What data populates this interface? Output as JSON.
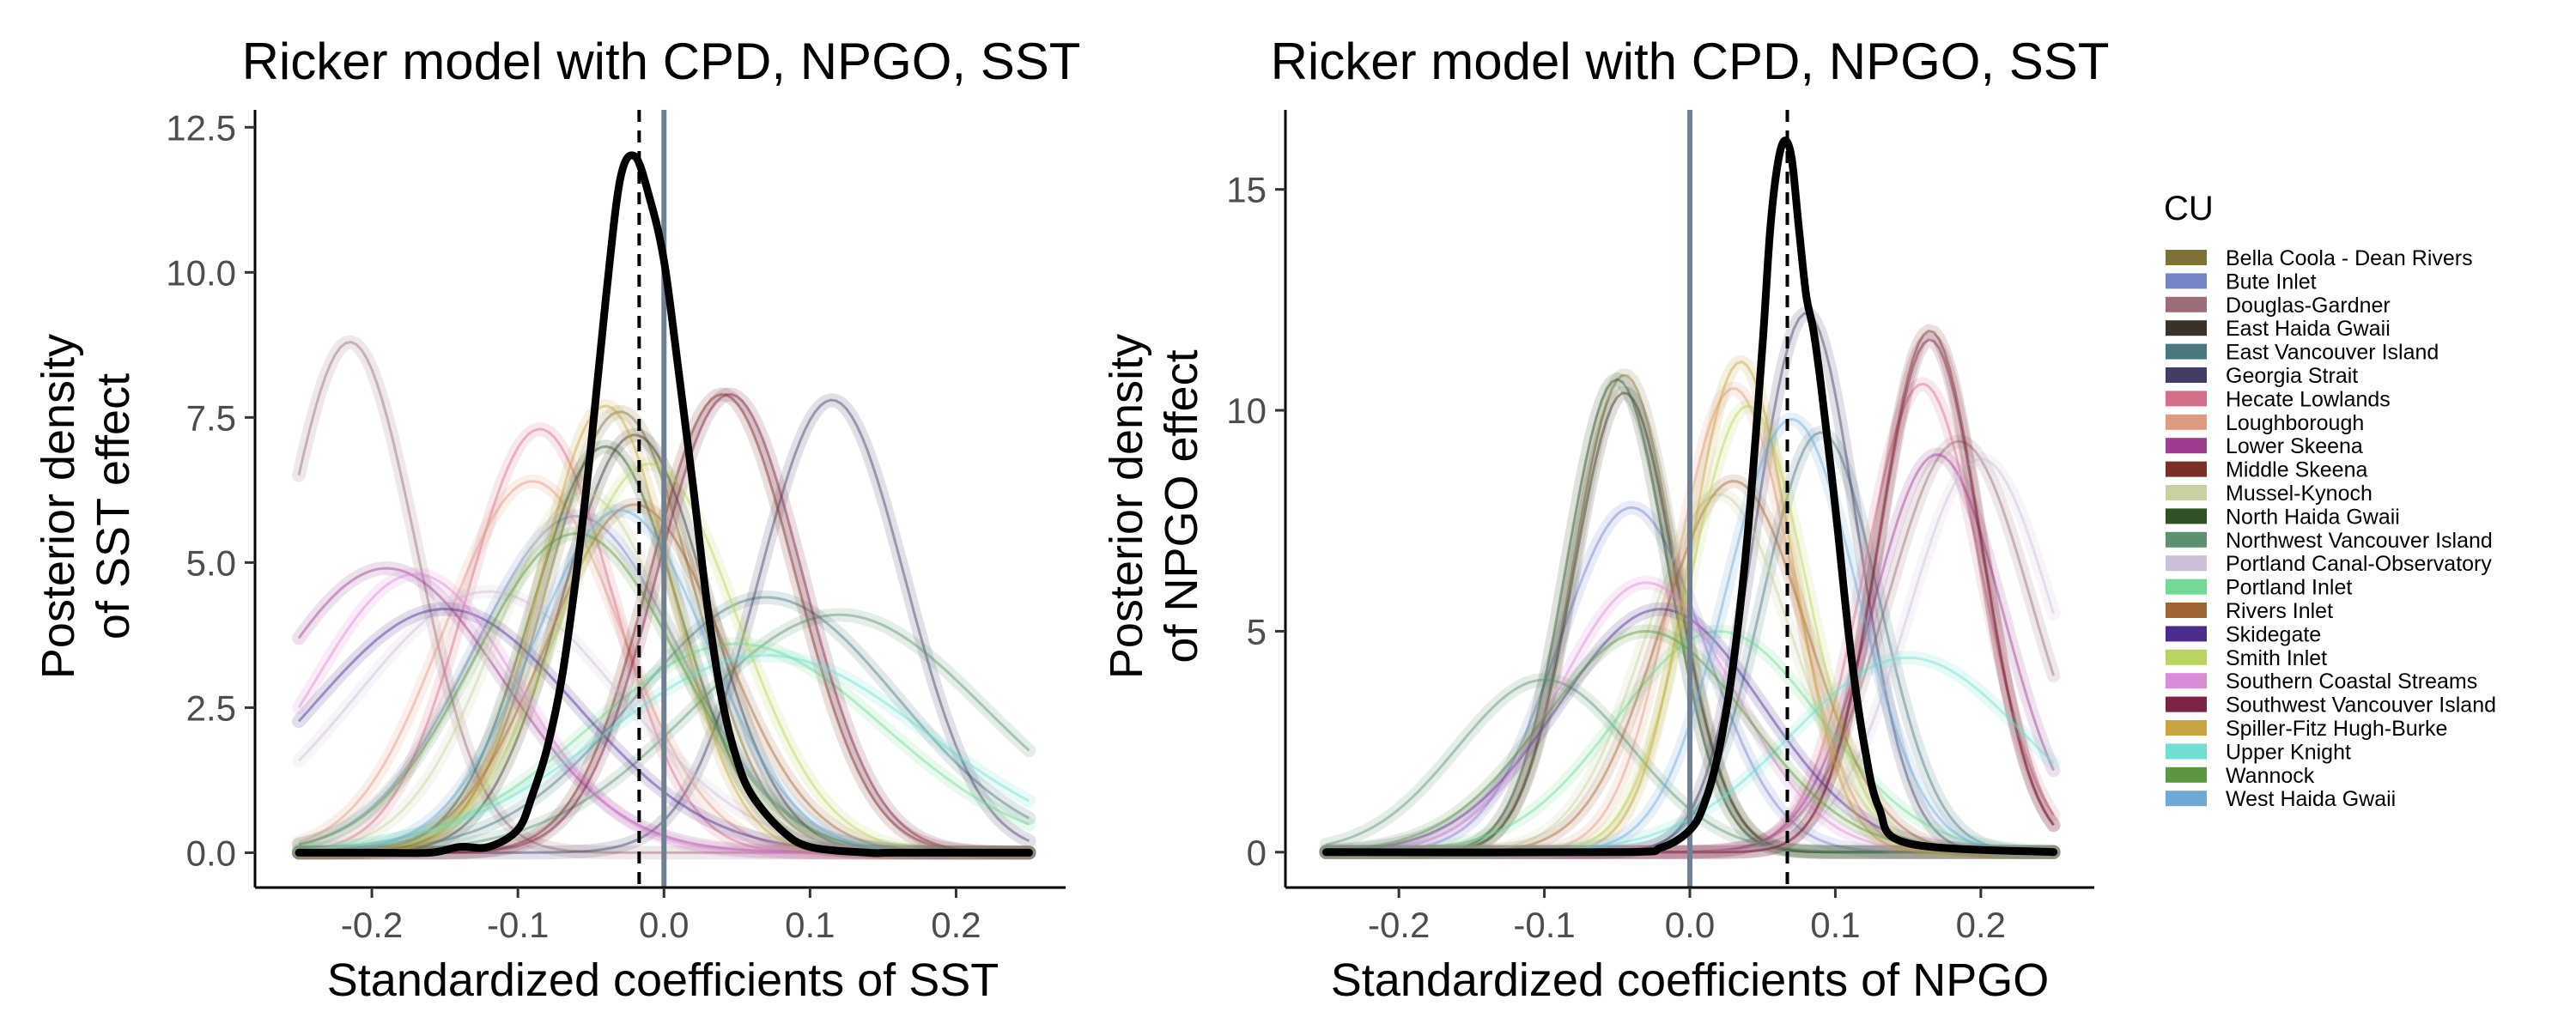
{
  "legend": {
    "title": "CU",
    "entries": [
      {
        "name": "Bella Coola - Dean Rivers",
        "color": "#7f7236"
      },
      {
        "name": "Bute Inlet",
        "color": "#7484c6"
      },
      {
        "name": "Douglas-Gardner",
        "color": "#9c6d78"
      },
      {
        "name": "East Haida Gwaii",
        "color": "#3a3128"
      },
      {
        "name": "East Vancouver Island",
        "color": "#4a7680"
      },
      {
        "name": "Georgia Strait",
        "color": "#423d66"
      },
      {
        "name": "Hecate Lowlands",
        "color": "#d36e8a"
      },
      {
        "name": "Loughborough",
        "color": "#dd9b84"
      },
      {
        "name": "Lower Skeena",
        "color": "#9e3c90"
      },
      {
        "name": "Middle Skeena",
        "color": "#7a2e28"
      },
      {
        "name": "Mussel-Kynoch",
        "color": "#c9d0a2"
      },
      {
        "name": "North Haida Gwaii",
        "color": "#2e5126"
      },
      {
        "name": "Northwest Vancouver Island",
        "color": "#5c9070"
      },
      {
        "name": "Portland Canal-Observatory",
        "color": "#cdbfd6"
      },
      {
        "name": "Portland Inlet",
        "color": "#74d896"
      },
      {
        "name": "Rivers Inlet",
        "color": "#9f6535"
      },
      {
        "name": "Skidegate",
        "color": "#4b2b8c"
      },
      {
        "name": "Smith Inlet",
        "color": "#bbd360"
      },
      {
        "name": "Southern Coastal Streams",
        "color": "#d88bd6"
      },
      {
        "name": "Southwest Vancouver Island",
        "color": "#7d2346"
      },
      {
        "name": "Spiller-Fitz Hugh-Burke",
        "color": "#c6a343"
      },
      {
        "name": "Upper Knight",
        "color": "#72ddd1"
      },
      {
        "name": "Wannock",
        "color": "#5c9640"
      },
      {
        "name": "West Haida Gwaii",
        "color": "#6ea9d6"
      }
    ]
  },
  "chart_data": [
    {
      "type": "line",
      "title": "Ricker model with CPD, NPGO, SST",
      "xlabel": "Standardized coefficients of SST",
      "ylabel": [
        "Posterior density",
        "of SST effect"
      ],
      "xlim": [
        -0.28,
        0.275
      ],
      "ylim": [
        -0.6,
        12.8
      ],
      "x_ticks": [
        -0.2,
        -0.1,
        0.0,
        0.1,
        0.2
      ],
      "x_tick_labels": [
        "-0.2",
        "-0.1",
        "0.0",
        "0.1",
        "0.2"
      ],
      "y_ticks": [
        0,
        2.5,
        5,
        7.5,
        10,
        12.5
      ],
      "y_tick_labels": [
        "0.0",
        "2.5",
        "5.0",
        "7.5",
        "10.0",
        "12.5"
      ],
      "reference_line": {
        "x": 0.0,
        "color": "#708090"
      },
      "mean_line": {
        "x": -0.017,
        "style": "dashed",
        "color": "#000000"
      },
      "x_range": [
        -0.25,
        0.25
      ],
      "cu_densities": [
        {
          "cu": "Bella Coola - Dean Rivers",
          "mean": -0.03,
          "sd": 0.05,
          "peak": 7.6
        },
        {
          "cu": "Bute Inlet",
          "mean": -0.06,
          "sd": 0.07,
          "peak": 5.8
        },
        {
          "cu": "Douglas-Gardner",
          "mean": -0.215,
          "sd": 0.045,
          "peak": 8.8
        },
        {
          "cu": "East Haida Gwaii",
          "mean": -0.02,
          "sd": 0.05,
          "peak": 7.2
        },
        {
          "cu": "East Vancouver Island",
          "mean": 0.07,
          "sd": 0.09,
          "peak": 4.4
        },
        {
          "cu": "Georgia Strait",
          "mean": 0.115,
          "sd": 0.05,
          "peak": 7.8
        },
        {
          "cu": "Hecate Lowlands",
          "mean": -0.085,
          "sd": 0.05,
          "peak": 7.3
        },
        {
          "cu": "Loughborough",
          "mean": -0.09,
          "sd": 0.06,
          "peak": 6.4
        },
        {
          "cu": "Lower Skeena",
          "mean": -0.19,
          "sd": 0.08,
          "peak": 4.9
        },
        {
          "cu": "Middle Skeena",
          "mean": 0.04,
          "sd": 0.05,
          "peak": 7.9
        },
        {
          "cu": "Mussel-Kynoch",
          "mean": -0.055,
          "sd": 0.06,
          "peak": 6.2
        },
        {
          "cu": "North Haida Gwaii",
          "mean": -0.04,
          "sd": 0.05,
          "peak": 7.0
        },
        {
          "cu": "Northwest Vancouver Island",
          "mean": 0.12,
          "sd": 0.1,
          "peak": 4.1
        },
        {
          "cu": "Portland Canal-Observatory",
          "mean": -0.12,
          "sd": 0.09,
          "peak": 4.5
        },
        {
          "cu": "Portland Inlet",
          "mean": 0.05,
          "sd": 0.1,
          "peak": 3.6
        },
        {
          "cu": "Rivers Inlet",
          "mean": -0.02,
          "sd": 0.06,
          "peak": 6.0
        },
        {
          "cu": "Skidegate",
          "mean": -0.15,
          "sd": 0.09,
          "peak": 4.2
        },
        {
          "cu": "Smith Inlet",
          "mean": -0.01,
          "sd": 0.06,
          "peak": 6.7
        },
        {
          "cu": "Southern Coastal Streams",
          "mean": -0.17,
          "sd": 0.07,
          "peak": 4.8
        },
        {
          "cu": "Southwest Vancouver Island",
          "mean": 0.045,
          "sd": 0.05,
          "peak": 7.9
        },
        {
          "cu": "Spiller-Fitz Hugh-Burke",
          "mean": -0.04,
          "sd": 0.045,
          "peak": 7.7
        },
        {
          "cu": "Upper Knight",
          "mean": 0.07,
          "sd": 0.11,
          "peak": 3.4
        },
        {
          "cu": "Wannock",
          "mean": -0.06,
          "sd": 0.07,
          "peak": 5.5
        },
        {
          "cu": "West Haida Gwaii",
          "mean": -0.03,
          "sd": 0.06,
          "peak": 5.9
        }
      ],
      "overall_density": {
        "x": [
          -0.25,
          -0.2,
          -0.16,
          -0.14,
          -0.12,
          -0.1,
          -0.09,
          -0.08,
          -0.07,
          -0.06,
          -0.05,
          -0.04,
          -0.03,
          -0.02,
          -0.01,
          0.0,
          0.01,
          0.02,
          0.03,
          0.04,
          0.05,
          0.06,
          0.08,
          0.1,
          0.14,
          0.16,
          0.25
        ],
        "y": [
          0.0,
          0.0,
          0.0,
          0.1,
          0.1,
          0.4,
          1.0,
          1.8,
          3.0,
          4.8,
          7.0,
          9.5,
          11.6,
          12.0,
          11.3,
          10.2,
          8.3,
          6.3,
          4.2,
          2.6,
          1.6,
          1.0,
          0.4,
          0.1,
          0.0,
          0.0,
          0.0
        ]
      }
    },
    {
      "type": "line",
      "title": "Ricker model with CPD, NPGO, SST",
      "xlabel": "Standardized coefficients of NPGO",
      "ylabel": [
        "Posterior density",
        "of NPGO effect"
      ],
      "xlim": [
        -0.278,
        0.278
      ],
      "ylim": [
        -0.8,
        16.8
      ],
      "x_ticks": [
        -0.2,
        -0.1,
        0.0,
        0.1,
        0.2
      ],
      "x_tick_labels": [
        "-0.2",
        "-0.1",
        "0.0",
        "0.1",
        "0.2"
      ],
      "y_ticks": [
        0,
        5,
        10,
        15
      ],
      "y_tick_labels": [
        "0",
        "5",
        "10",
        "15"
      ],
      "reference_line": {
        "x": 0.0,
        "color": "#708090"
      },
      "mean_line": {
        "x": 0.067,
        "style": "dashed",
        "color": "#000000"
      },
      "x_range": [
        -0.25,
        0.25
      ],
      "cu_densities": [
        {
          "cu": "Bella Coola - Dean Rivers",
          "mean": -0.045,
          "sd": 0.035,
          "peak": 10.8
        },
        {
          "cu": "Bute Inlet",
          "mean": -0.04,
          "sd": 0.05,
          "peak": 7.8
        },
        {
          "cu": "Douglas-Gardner",
          "mean": 0.185,
          "sd": 0.05,
          "peak": 9.3
        },
        {
          "cu": "East Haida Gwaii",
          "mean": -0.045,
          "sd": 0.035,
          "peak": 10.4
        },
        {
          "cu": "East Vancouver Island",
          "mean": 0.09,
          "sd": 0.04,
          "peak": 9.5
        },
        {
          "cu": "Georgia Strait",
          "mean": 0.08,
          "sd": 0.035,
          "peak": 12.2
        },
        {
          "cu": "Hecate Lowlands",
          "mean": 0.16,
          "sd": 0.04,
          "peak": 10.6
        },
        {
          "cu": "Loughborough",
          "mean": 0.03,
          "sd": 0.04,
          "peak": 10.5
        },
        {
          "cu": "Lower Skeena",
          "mean": 0.17,
          "sd": 0.045,
          "peak": 9.0
        },
        {
          "cu": "Middle Skeena",
          "mean": 0.165,
          "sd": 0.035,
          "peak": 11.8
        },
        {
          "cu": "Mussel-Kynoch",
          "mean": 0.02,
          "sd": 0.05,
          "peak": 8.1
        },
        {
          "cu": "North Haida Gwaii",
          "mean": -0.05,
          "sd": 0.035,
          "peak": 10.7
        },
        {
          "cu": "Northwest Vancouver Island",
          "mean": -0.1,
          "sd": 0.06,
          "peak": 3.9
        },
        {
          "cu": "Portland Canal-Observatory",
          "mean": 0.2,
          "sd": 0.05,
          "peak": 8.9
        },
        {
          "cu": "Portland Inlet",
          "mean": 0.02,
          "sd": 0.07,
          "peak": 5.0
        },
        {
          "cu": "Rivers Inlet",
          "mean": 0.03,
          "sd": 0.05,
          "peak": 8.4
        },
        {
          "cu": "Skidegate",
          "mean": -0.02,
          "sd": 0.07,
          "peak": 5.5
        },
        {
          "cu": "Smith Inlet",
          "mean": 0.04,
          "sd": 0.04,
          "peak": 10.1
        },
        {
          "cu": "Southern Coastal Streams",
          "mean": -0.03,
          "sd": 0.06,
          "peak": 6.1
        },
        {
          "cu": "Southwest Vancouver Island",
          "mean": 0.165,
          "sd": 0.035,
          "peak": 11.6
        },
        {
          "cu": "Spiller-Fitz Hugh-Burke",
          "mean": 0.035,
          "sd": 0.035,
          "peak": 11.1
        },
        {
          "cu": "Upper Knight",
          "mean": 0.15,
          "sd": 0.08,
          "peak": 4.4
        },
        {
          "cu": "Wannock",
          "mean": -0.03,
          "sd": 0.07,
          "peak": 5.0
        },
        {
          "cu": "West Haida Gwaii",
          "mean": 0.07,
          "sd": 0.045,
          "peak": 9.8
        }
      ],
      "overall_density": {
        "x": [
          -0.25,
          -0.05,
          -0.02,
          0.0,
          0.01,
          0.02,
          0.03,
          0.04,
          0.05,
          0.055,
          0.06,
          0.065,
          0.07,
          0.075,
          0.08,
          0.085,
          0.09,
          0.1,
          0.11,
          0.12,
          0.13,
          0.15,
          0.25
        ],
        "y": [
          0.0,
          0.0,
          0.1,
          0.5,
          1.1,
          2.3,
          4.3,
          7.3,
          11.5,
          14.0,
          15.5,
          16.1,
          15.7,
          14.1,
          12.6,
          11.8,
          10.6,
          7.8,
          4.7,
          2.4,
          1.0,
          0.2,
          0.0
        ]
      }
    }
  ]
}
